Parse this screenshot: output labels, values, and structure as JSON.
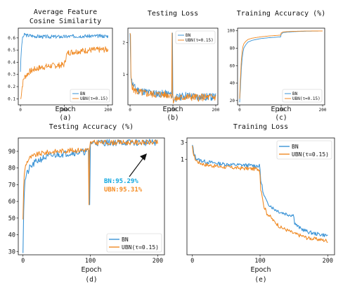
{
  "colors": {
    "bn": "#3a93d6",
    "ubn": "#f08a24",
    "anno_bn": "#12a8e0",
    "anno_ubn": "#f58a1f"
  },
  "chart_data": [
    {
      "id": "a",
      "type": "line",
      "title": "Average Feature Cosine Similarity",
      "title_lines": [
        "Average Feature",
        "Cosine Similarity"
      ],
      "xlabel": "Epoch",
      "caption": "(a)",
      "xlim": [
        -5,
        210
      ],
      "ylim": [
        0.05,
        0.68
      ],
      "xticks": [
        0,
        100,
        200
      ],
      "yticks": [
        0.1,
        0.2,
        0.3,
        0.4,
        0.5,
        0.6
      ],
      "ytick_labels": [
        "0.1",
        "0.2",
        "0.3",
        "0.4",
        "0.5",
        "0.6"
      ],
      "legend": "bottom-right",
      "series": [
        {
          "name": "BN",
          "color_key": "bn",
          "noise": 0.015,
          "seed": 3,
          "x": [
            0,
            2,
            4,
            6,
            8,
            10,
            15,
            20,
            30,
            50,
            70,
            100,
            130,
            160,
            200
          ],
          "y": [
            0.33,
            0.5,
            0.58,
            0.61,
            0.62,
            0.63,
            0.62,
            0.62,
            0.615,
            0.61,
            0.61,
            0.61,
            0.615,
            0.615,
            0.615
          ]
        },
        {
          "name": "UBN(τ=0.15)",
          "color_key": "ubn",
          "noise": 0.025,
          "seed": 7,
          "x": [
            0,
            2,
            4,
            6,
            8,
            10,
            15,
            20,
            30,
            50,
            70,
            90,
            100,
            105,
            110,
            130,
            160,
            200
          ],
          "y": [
            0.1,
            0.14,
            0.2,
            0.24,
            0.27,
            0.28,
            0.3,
            0.32,
            0.34,
            0.36,
            0.37,
            0.375,
            0.38,
            0.46,
            0.48,
            0.49,
            0.5,
            0.505
          ]
        }
      ]
    },
    {
      "id": "b",
      "type": "line",
      "title": "Testing Loss",
      "xlabel": "Epoch",
      "caption": "(b)",
      "xlim": [
        -5,
        205
      ],
      "ylim": [
        0.05,
        2.45
      ],
      "xticks": [
        0,
        100,
        200
      ],
      "yticks": [
        1,
        2
      ],
      "ytick_labels": [
        "1",
        "2"
      ],
      "legend": "top-right",
      "series": [
        {
          "name": "BN",
          "color_key": "bn",
          "noise": 0.12,
          "seed": 11,
          "x": [
            0,
            2,
            4,
            6,
            10,
            20,
            40,
            60,
            80,
            99,
            101,
            110,
            130,
            160,
            200
          ],
          "y": [
            2.2,
            1.0,
            0.8,
            0.7,
            0.6,
            0.5,
            0.45,
            0.4,
            0.4,
            0.38,
            0.22,
            0.28,
            0.35,
            0.3,
            0.3
          ],
          "spikes": [
            [
              99,
              2.3
            ]
          ]
        },
        {
          "name": "UBN(τ=0.15)",
          "color_key": "ubn",
          "noise": 0.12,
          "seed": 5,
          "x": [
            0,
            2,
            4,
            6,
            10,
            20,
            40,
            60,
            80,
            99,
            101,
            110,
            130,
            160,
            200
          ],
          "y": [
            2.2,
            0.9,
            0.7,
            0.6,
            0.5,
            0.45,
            0.4,
            0.38,
            0.37,
            0.36,
            0.2,
            0.24,
            0.3,
            0.28,
            0.29
          ],
          "spikes": [
            [
              1,
              2.25
            ],
            [
              98,
              2.3
            ]
          ]
        }
      ]
    },
    {
      "id": "c",
      "type": "line",
      "title": "Training Accuracy (%)",
      "xlabel": "Epoch",
      "caption": "(c)",
      "xlim": [
        -5,
        205
      ],
      "ylim": [
        15,
        103
      ],
      "xticks": [
        0,
        100,
        200
      ],
      "yticks": [
        20,
        40,
        60,
        80,
        100
      ],
      "ytick_labels": [
        "20",
        "40",
        "60",
        "80",
        "100"
      ],
      "legend": "bottom-right",
      "series": [
        {
          "name": "BN",
          "color_key": "bn",
          "noise": 0,
          "seed": 1,
          "x": [
            0,
            2,
            4,
            6,
            8,
            10,
            15,
            20,
            30,
            50,
            70,
            99,
            100,
            105,
            130,
            160,
            200
          ],
          "y": [
            18,
            35,
            55,
            68,
            75,
            80,
            84,
            87,
            89,
            91,
            92,
            93,
            96,
            98,
            99,
            99.5,
            99.7
          ]
        },
        {
          "name": "UBN(τ=0.15)",
          "color_key": "ubn",
          "noise": 0,
          "seed": 2,
          "x": [
            0,
            2,
            4,
            6,
            8,
            10,
            15,
            20,
            30,
            50,
            70,
            99,
            100,
            105,
            130,
            160,
            200
          ],
          "y": [
            22,
            45,
            65,
            76,
            82,
            85,
            88,
            90,
            91.5,
            93,
            94,
            95,
            97.5,
            98.7,
            99.4,
            99.7,
            99.8
          ]
        }
      ]
    },
    {
      "id": "d",
      "type": "line",
      "title": "Testing Accuracy (%)",
      "xlabel": "Epoch",
      "caption": "(d)",
      "xlim": [
        -7,
        210
      ],
      "ylim": [
        28,
        98
      ],
      "xticks": [
        0,
        100,
        200
      ],
      "yticks": [
        30,
        40,
        50,
        60,
        70,
        80,
        90
      ],
      "ytick_labels": [
        "30",
        "40",
        "50",
        "60",
        "70",
        "80",
        "90"
      ],
      "legend": "bottom-right",
      "annotation": {
        "bn_text": "BN:95.29%",
        "ubn_text": "UBN:95.31%"
      },
      "series": [
        {
          "name": "BN",
          "color_key": "bn",
          "noise": 2.0,
          "seed": 21,
          "x": [
            0,
            1,
            2,
            3,
            5,
            8,
            10,
            15,
            20,
            30,
            50,
            70,
            99,
            100,
            102,
            110,
            150,
            200
          ],
          "y": [
            30,
            55,
            66,
            72,
            76,
            78,
            80,
            82,
            84,
            86,
            88,
            89,
            90,
            94.8,
            95.1,
            95.2,
            95.3,
            95.3
          ],
          "spikes": [
            [
              99,
              58
            ]
          ]
        },
        {
          "name": "UBN(τ=0.15)",
          "color_key": "ubn",
          "noise": 1.5,
          "seed": 9,
          "x": [
            0,
            1,
            2,
            3,
            5,
            8,
            10,
            15,
            20,
            30,
            50,
            70,
            99,
            100,
            102,
            110,
            150,
            200
          ],
          "y": [
            50,
            68,
            76,
            80,
            83,
            85,
            86,
            87,
            88,
            89,
            90,
            90.5,
            91,
            95,
            95.2,
            95.3,
            95.3,
            95.3
          ],
          "spikes": [
            [
              98,
              58
            ]
          ]
        }
      ]
    },
    {
      "id": "e",
      "type": "line",
      "title": "Training Loss",
      "xlabel": "Epoch",
      "caption": "(e)",
      "xlim": [
        -8,
        210
      ],
      "ylim": [
        0.002,
        4
      ],
      "yscale": "log",
      "xticks": [
        0,
        100,
        200
      ],
      "yticks": [
        1,
        3
      ],
      "ytick_labels": [
        "1",
        "3"
      ],
      "legend": "top-right",
      "series": [
        {
          "name": "BN",
          "color_key": "bn",
          "noise": 0.02,
          "seed": 13,
          "log_noise": true,
          "x": [
            0,
            2,
            5,
            10,
            20,
            40,
            60,
            80,
            99,
            100,
            101,
            105,
            110,
            120,
            130,
            140,
            150,
            151,
            155,
            160,
            170,
            180,
            200
          ],
          "y": [
            2.5,
            1.5,
            1.1,
            0.95,
            0.85,
            0.75,
            0.7,
            0.68,
            0.65,
            0.5,
            0.25,
            0.1,
            0.06,
            0.04,
            0.032,
            0.028,
            0.026,
            0.016,
            0.013,
            0.011,
            0.009,
            0.008,
            0.007
          ]
        },
        {
          "name": "UBN(τ=0.15)",
          "color_key": "ubn",
          "noise": 0.02,
          "seed": 17,
          "log_noise": true,
          "x": [
            0,
            2,
            5,
            10,
            20,
            40,
            60,
            80,
            99,
            100,
            101,
            105,
            110,
            120,
            130,
            150,
            170,
            200
          ],
          "y": [
            2.2,
            1.3,
            0.95,
            0.8,
            0.7,
            0.62,
            0.58,
            0.55,
            0.53,
            0.35,
            0.15,
            0.05,
            0.03,
            0.018,
            0.012,
            0.008,
            0.006,
            0.005
          ]
        }
      ]
    }
  ]
}
